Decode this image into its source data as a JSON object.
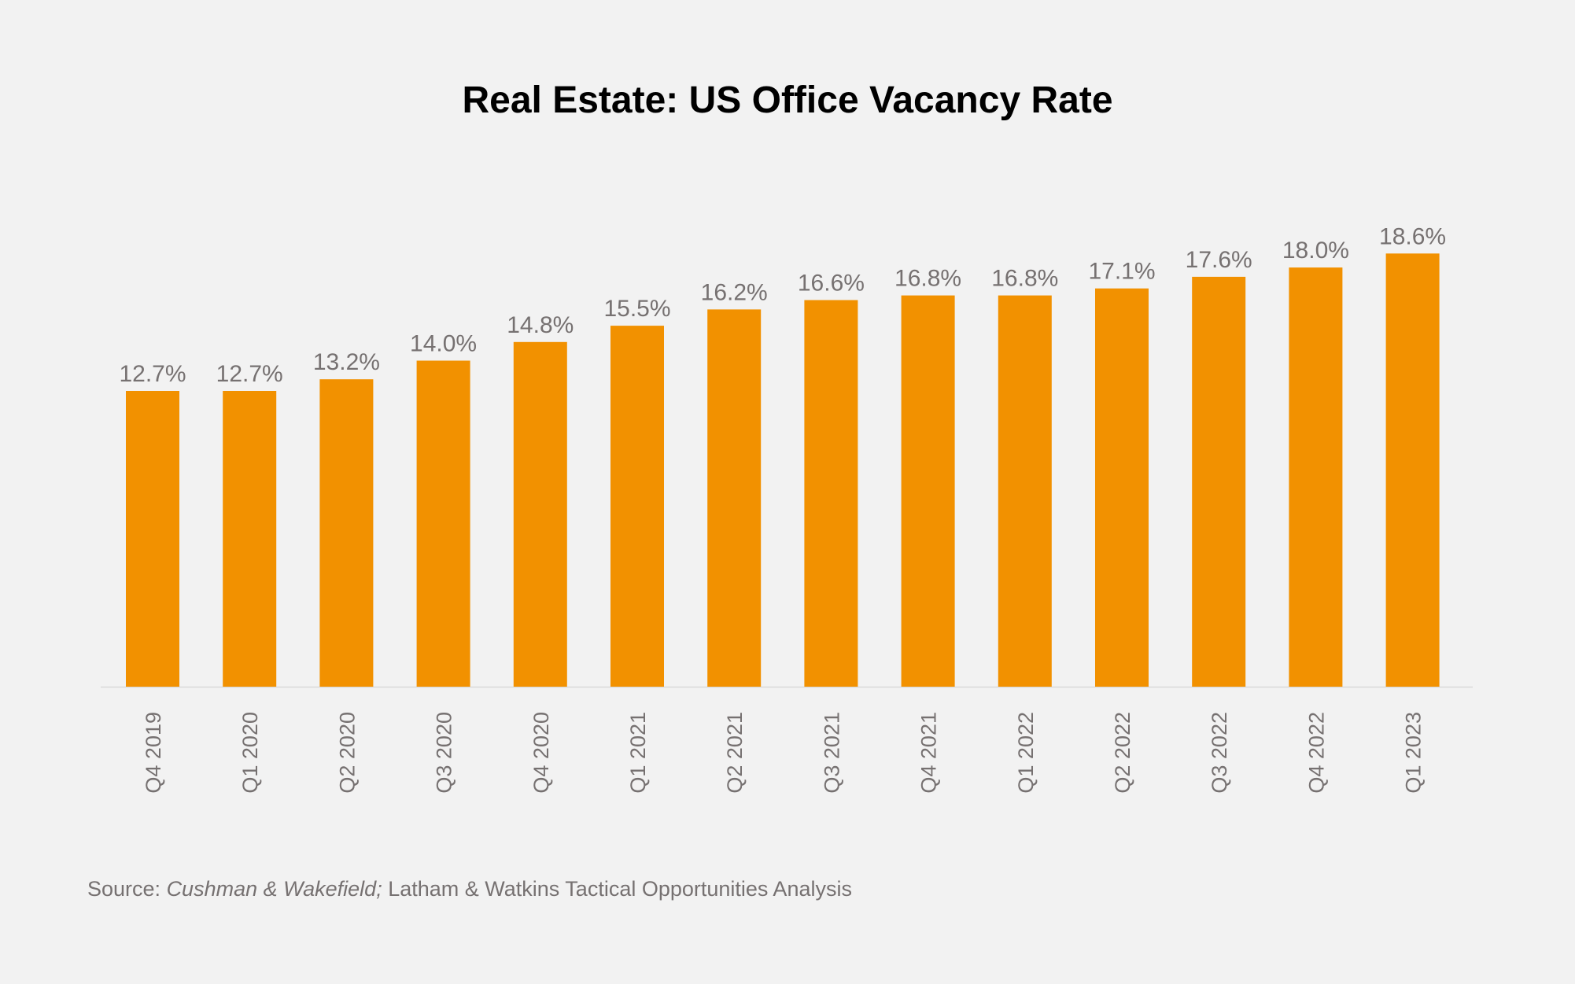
{
  "chart_data": {
    "type": "bar",
    "title": "Real Estate: US Office Vacancy Rate",
    "categories": [
      "Q4 2019",
      "Q1 2020",
      "Q2 2020",
      "Q3 2020",
      "Q4 2020",
      "Q1 2021",
      "Q2 2021",
      "Q3 2021",
      "Q4 2021",
      "Q1 2022",
      "Q2 2022",
      "Q3 2022",
      "Q4 2022",
      "Q1 2023"
    ],
    "values": [
      12.7,
      12.7,
      13.2,
      14.0,
      14.8,
      15.5,
      16.2,
      16.6,
      16.8,
      16.8,
      17.1,
      17.6,
      18.0,
      18.6
    ],
    "data_labels": [
      "12.7%",
      "12.7%",
      "13.2%",
      "14.0%",
      "14.8%",
      "15.5%",
      "16.2%",
      "16.6%",
      "16.8%",
      "16.8%",
      "17.1%",
      "17.6%",
      "18.0%",
      "18.6%"
    ],
    "xlabel": "",
    "ylabel": "",
    "ylim": [
      0,
      20
    ],
    "grid": false,
    "legend": "none",
    "bar_color": "#f29100",
    "label_color": "#767171",
    "axis_color": "#d9d9d9"
  },
  "source": {
    "prefix": "Source: ",
    "italic": "Cushman & Wakefield;",
    "rest": " Latham & Watkins Tactical Opportunities Analysis"
  }
}
